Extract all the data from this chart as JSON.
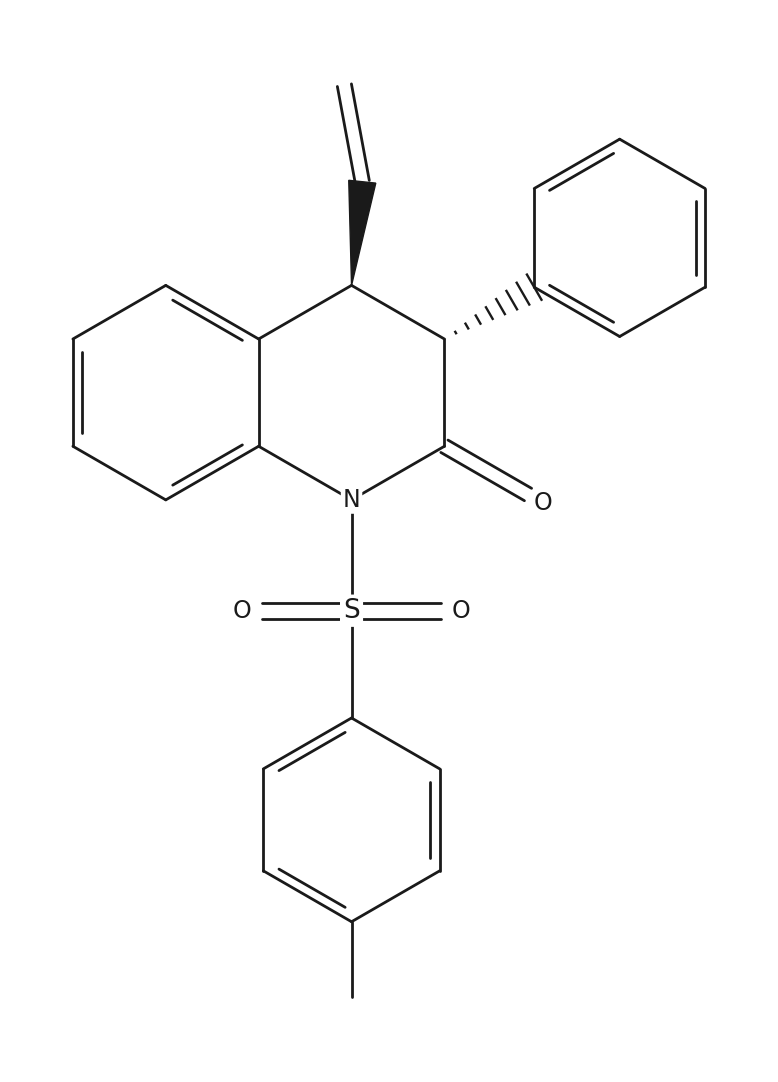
{
  "bg_color": "#ffffff",
  "line_color": "#1a1a1a",
  "line_width": 2.0,
  "fig_width": 7.78,
  "fig_height": 10.82,
  "dpi": 100,
  "label_N": "N",
  "label_O_carbonyl": "O",
  "label_O_sulfone1": "O",
  "label_O_sulfone2": "O",
  "label_S": "S"
}
